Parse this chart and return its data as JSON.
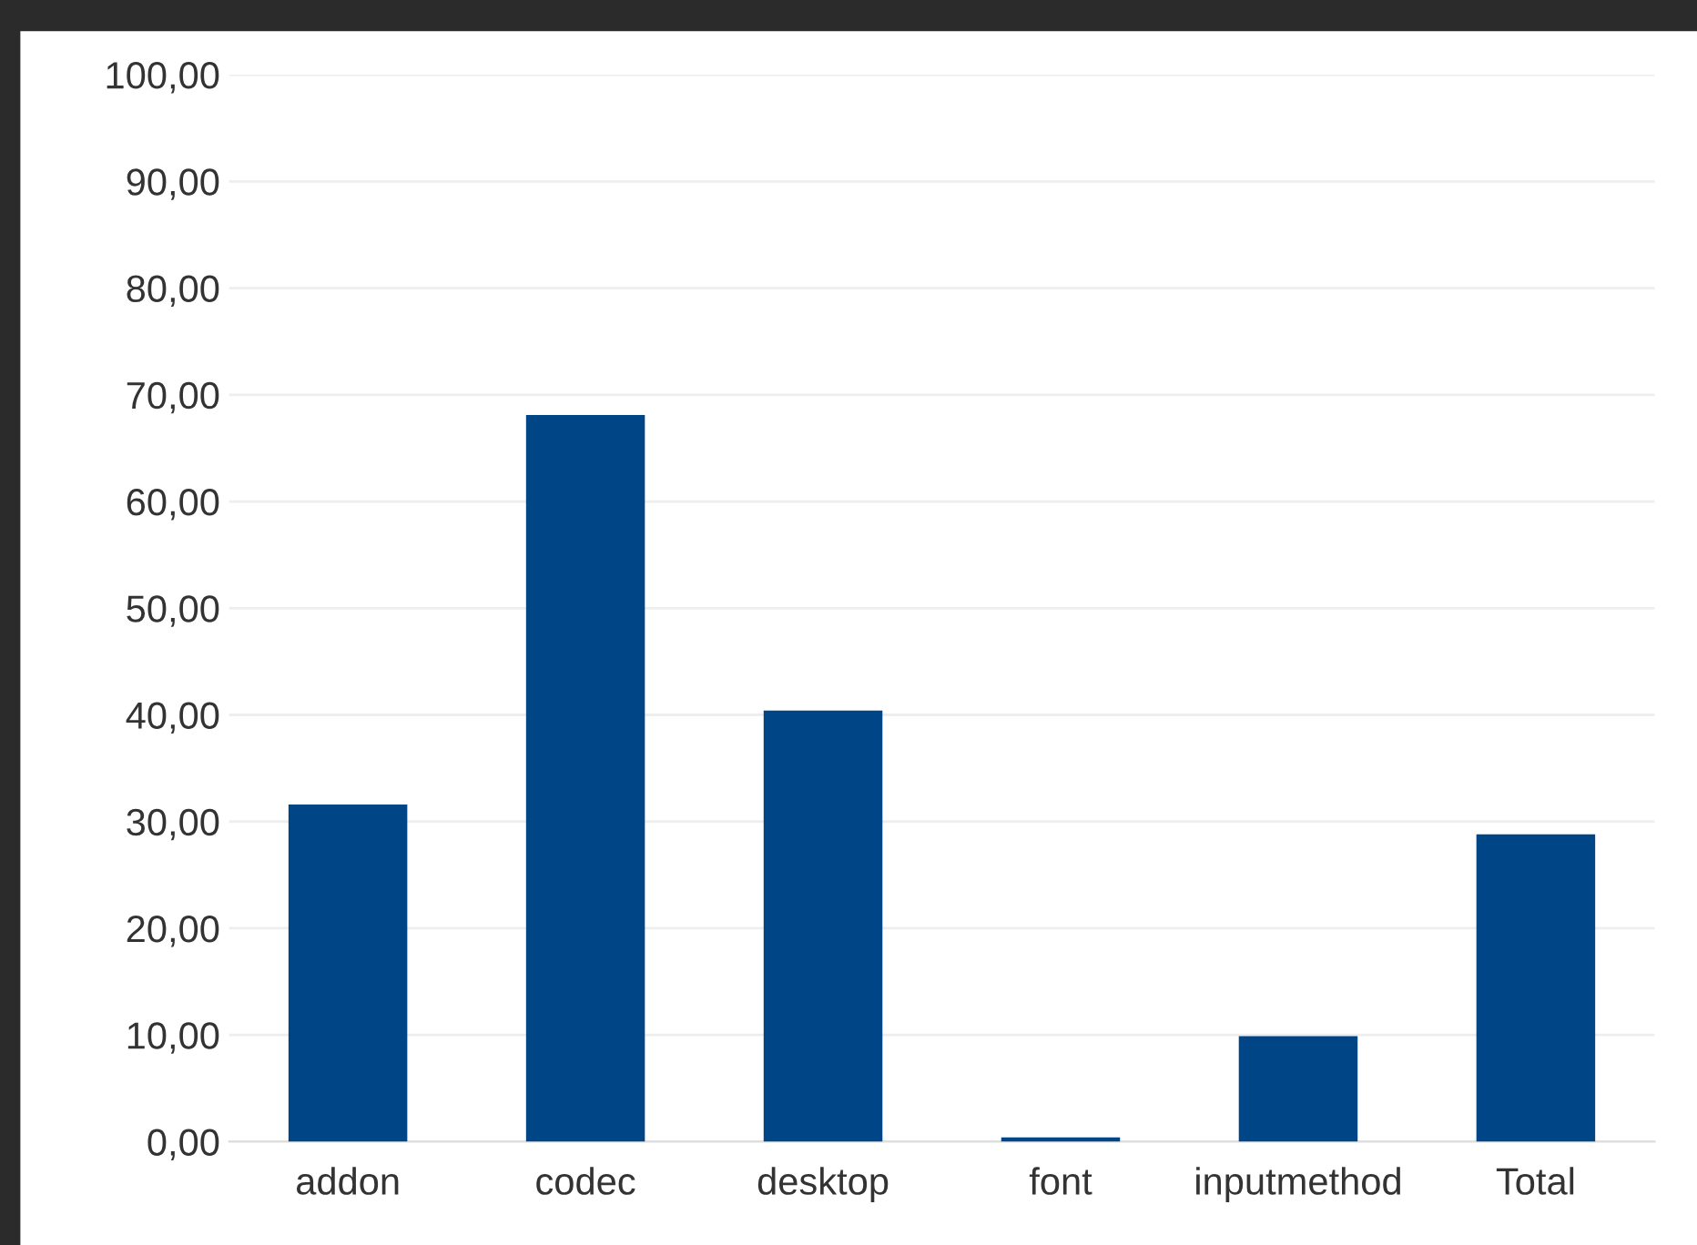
{
  "chart_data": {
    "type": "bar",
    "categories": [
      "addon",
      "codec",
      "desktop",
      "font",
      "inputmethod",
      "Total"
    ],
    "values": [
      31.6,
      68.1,
      40.4,
      0.4,
      9.9,
      28.8
    ],
    "color": "#004586",
    "ylim": [
      0,
      100
    ],
    "yticks": [
      {
        "value": 0,
        "label": "0,00"
      },
      {
        "value": 10,
        "label": "10,00"
      },
      {
        "value": 20,
        "label": "20,00"
      },
      {
        "value": 30,
        "label": "30,00"
      },
      {
        "value": 40,
        "label": "40,00"
      },
      {
        "value": 50,
        "label": "50,00"
      },
      {
        "value": 60,
        "label": "60,00"
      },
      {
        "value": 70,
        "label": "70,00"
      },
      {
        "value": 80,
        "label": "80,00"
      },
      {
        "value": 90,
        "label": "90,00"
      },
      {
        "value": 100,
        "label": "100,00"
      }
    ],
    "grid": "y",
    "legend": false
  }
}
